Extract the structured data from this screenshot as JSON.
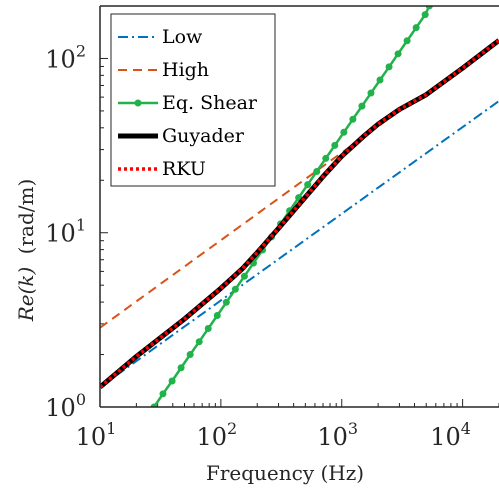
{
  "chart_data": {
    "type": "line",
    "xlabel": "Frequency (Hz)",
    "ylabel_prefix": "Re(k)",
    "ylabel_unit": "(rad/m)",
    "xscale": "log",
    "yscale": "log",
    "xlim": [
      10,
      20000
    ],
    "ylim": [
      1,
      200
    ],
    "xticks": [
      {
        "value": 10,
        "base": "10",
        "exp": "1"
      },
      {
        "value": 100,
        "base": "10",
        "exp": "2"
      },
      {
        "value": 1000,
        "base": "10",
        "exp": "3"
      },
      {
        "value": 10000,
        "base": "10",
        "exp": "4"
      }
    ],
    "yticks": [
      {
        "value": 1,
        "base": "10",
        "exp": "0"
      },
      {
        "value": 10,
        "base": "10",
        "exp": "1"
      },
      {
        "value": 100,
        "base": "10",
        "exp": "2"
      }
    ],
    "grid": false,
    "legend_position": "top-left",
    "series": [
      {
        "name": "Low",
        "color": "#0072BD",
        "style": "dashdot",
        "markers": false,
        "x": [
          10,
          20000
        ],
        "y": [
          1.3,
          57
        ]
      },
      {
        "name": "High",
        "color": "#D95319",
        "style": "dashed",
        "markers": false,
        "x": [
          10,
          3000
        ],
        "y": [
          2.85,
          50
        ]
      },
      {
        "name": "Eq. Shear",
        "color": "#21B24B",
        "style": "solid",
        "markers": true,
        "x": [
          28,
          33.2,
          39.5,
          46.9,
          55.7,
          66.2,
          78.6,
          93.4,
          111,
          131.8,
          156.6,
          186,
          221,
          262.5,
          311.8,
          370.4,
          440,
          522.7,
          620.9,
          737.6,
          876.2,
          1040.8,
          1236.4,
          1468.7,
          1744.6,
          2072.4,
          2461.8,
          2924.3,
          3473.8,
          4126.5,
          4901.8,
          5300
        ],
        "y": [
          1.0,
          1.19,
          1.41,
          1.68,
          2.0,
          2.37,
          2.82,
          3.35,
          3.99,
          4.74,
          5.63,
          6.7,
          7.96,
          9.46,
          11.25,
          13.37,
          15.89,
          18.89,
          22.45,
          26.69,
          31.72,
          37.7,
          44.81,
          53.27,
          63.31,
          75.25,
          89.45,
          106.3,
          126.4,
          150.2,
          178.5,
          200
        ]
      },
      {
        "name": "Guyader",
        "color": "#000000",
        "style": "solid",
        "markers": false,
        "x": [
          10,
          20,
          50,
          100,
          150,
          200,
          300,
          500,
          700,
          1000,
          1500,
          2000,
          3000,
          5000,
          10000,
          20000
        ],
        "y": [
          1.3,
          1.95,
          3.2,
          4.8,
          6.2,
          7.7,
          10.6,
          16,
          21,
          27.5,
          35.5,
          42,
          51,
          62,
          88,
          127
        ]
      },
      {
        "name": "RKU",
        "color": "#FF0000",
        "style": "dotted",
        "markers": false,
        "x": [
          10,
          20,
          50,
          100,
          150,
          200,
          300,
          500,
          700,
          1000,
          1500,
          2000,
          3000,
          5000,
          10000,
          20000
        ],
        "y": [
          1.3,
          1.95,
          3.2,
          4.8,
          6.2,
          7.7,
          10.6,
          16,
          21,
          27.5,
          35.5,
          42,
          51,
          62,
          88,
          127
        ]
      }
    ]
  }
}
